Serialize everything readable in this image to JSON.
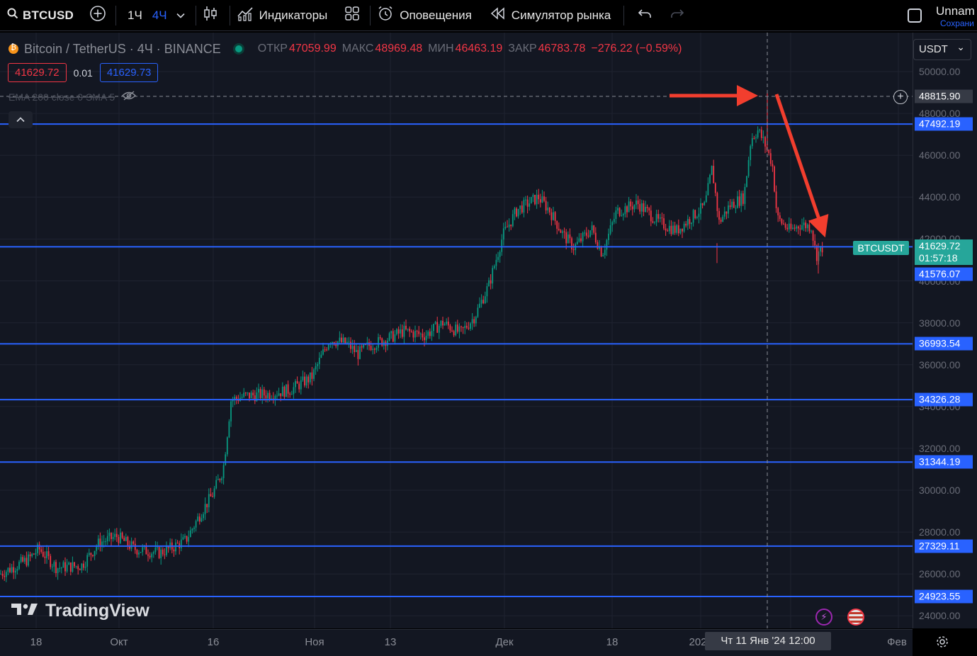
{
  "toolbar": {
    "symbol": "BTCUSD",
    "intervals": [
      "1Ч",
      "4Ч"
    ],
    "active_interval": "4Ч",
    "indicators_label": "Индикаторы",
    "alerts_label": "Оповещения",
    "replay_label": "Симулятор рынка",
    "layout_name": "Unnam",
    "save_label": "Сохрани"
  },
  "legend": {
    "title": "Bitcoin / TetherUS · 4Ч · BINANCE",
    "open_k": "ОТКР",
    "open_v": "47059.99",
    "high_k": "МАКС",
    "high_v": "48969.48",
    "low_k": "МИН",
    "low_v": "46463.19",
    "close_k": "ЗАКР",
    "close_v": "46783.78",
    "change": "−276.22 (−0.59%)",
    "bid": "41629.72",
    "qty": "0.01",
    "ask": "41629.73",
    "ema": "EMA 200 close 0 SMA 5"
  },
  "watermark": "TradingView",
  "currency": "USDT",
  "symbol_tag": "BTCUSDT",
  "price_scale": {
    "labels": [
      "50000.00",
      "48000.00",
      "46000.00",
      "44000.00",
      "42000.00",
      "40000.00",
      "38000.00",
      "36000.00",
      "34000.00",
      "32000.00",
      "30000.00",
      "28000.00",
      "26000.00",
      "24000.00"
    ],
    "level_tags": [
      "47492.19",
      "36993.54",
      "34326.28",
      "31344.19",
      "27329.11",
      "24923.55"
    ],
    "crosshair_price": "48815.90",
    "last_price": "41629.72",
    "countdown": "01:57:18",
    "low_tag": "41576.07"
  },
  "time_scale": {
    "labels": [
      "18",
      "Окт",
      "16",
      "Ноя",
      "13",
      "Дек",
      "18",
      "202",
      "Фев"
    ],
    "crosshair": "Чт 11 Янв '24   12:00"
  },
  "colors": {
    "up": "#089981",
    "down": "#f23645",
    "level": "#2962ff",
    "arrow": "#f23e2e"
  }
}
